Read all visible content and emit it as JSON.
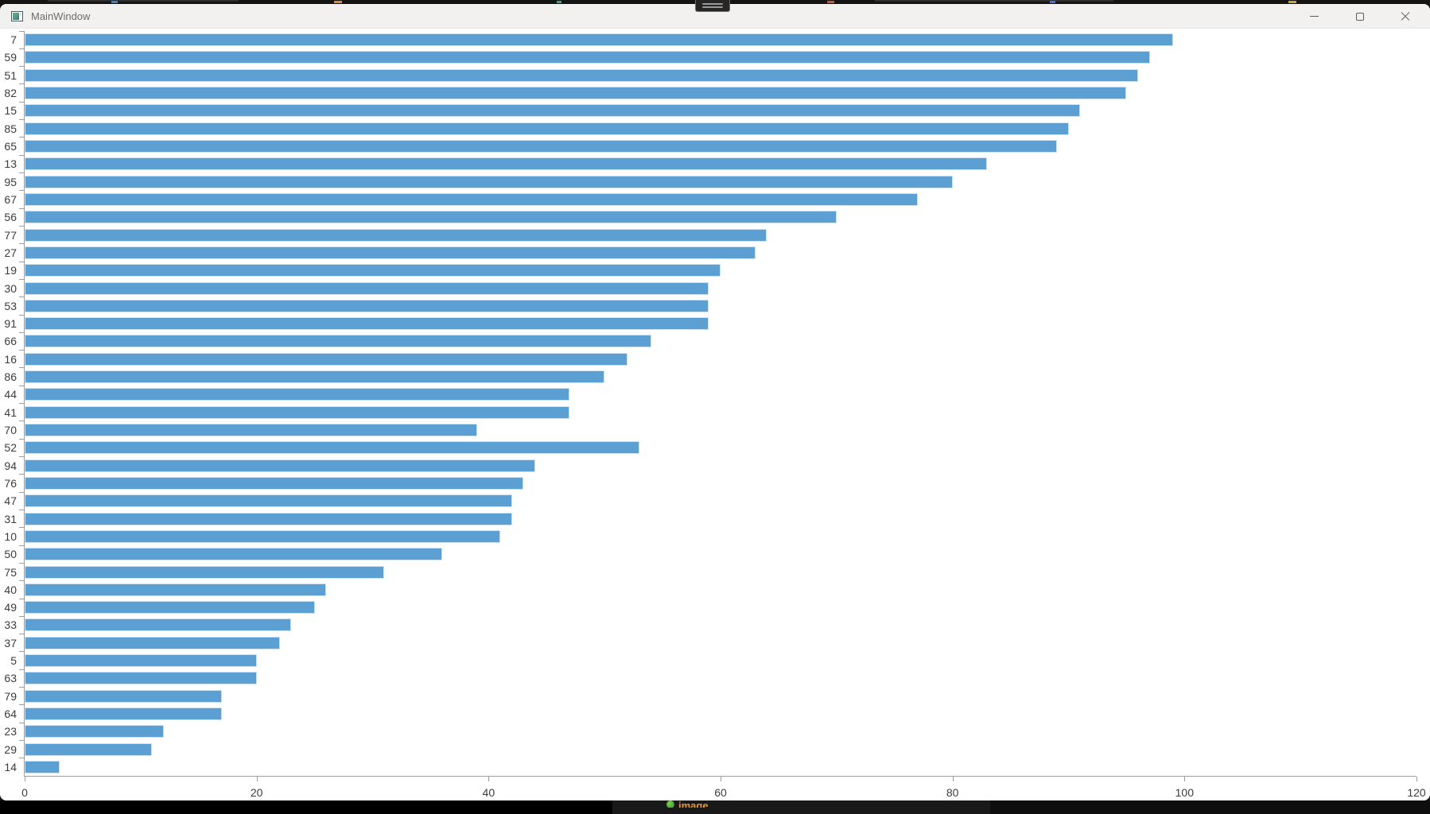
{
  "window": {
    "title": "MainWindow",
    "controls": [
      "minimize",
      "maximize",
      "close"
    ]
  },
  "chart_data": {
    "type": "bar",
    "orientation": "horizontal",
    "title": "",
    "xlabel": "",
    "ylabel": "",
    "categories": [
      "7",
      "59",
      "51",
      "82",
      "15",
      "85",
      "65",
      "13",
      "95",
      "67",
      "56",
      "77",
      "27",
      "19",
      "30",
      "53",
      "91",
      "66",
      "16",
      "86",
      "44",
      "41",
      "70",
      "52",
      "94",
      "76",
      "47",
      "31",
      "10",
      "50",
      "75",
      "40",
      "49",
      "33",
      "37",
      "5",
      "63",
      "79",
      "64",
      "23",
      "29",
      "14"
    ],
    "values": [
      99,
      97,
      96,
      95,
      91,
      90,
      89,
      83,
      80,
      77,
      70,
      64,
      63,
      60,
      59,
      59,
      59,
      54,
      52,
      50,
      47,
      47,
      39,
      53,
      44,
      43,
      42,
      42,
      41,
      36,
      31,
      26,
      25,
      23,
      22,
      20,
      20,
      17,
      17,
      12,
      11,
      3
    ],
    "xlim": [
      0,
      120
    ],
    "x_ticks": [
      0,
      20,
      40,
      60,
      80,
      100,
      120
    ],
    "grid": false,
    "legend": "none",
    "bar_color": "#5b9fd3",
    "bar_border_color": "#cfe3f3"
  },
  "background": {
    "taskbar_fragment_text": "image"
  }
}
